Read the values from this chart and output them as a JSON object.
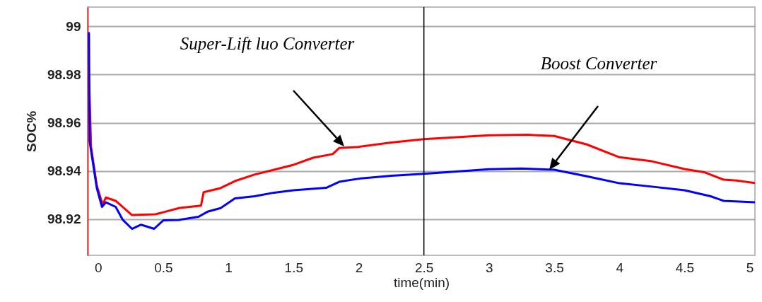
{
  "chart_data": {
    "type": "line",
    "xlabel": "time(min)",
    "ylabel": "SOC%",
    "xlim": [
      -0.08,
      5.04
    ],
    "ylim": [
      98.905,
      99.008
    ],
    "xticks": [
      0,
      0.5,
      1,
      1.5,
      2,
      2.5,
      3,
      3.5,
      4,
      4.5,
      5
    ],
    "yticks": [
      98.92,
      98.94,
      98.96,
      98.98,
      99
    ],
    "grid": "y",
    "marker": "none",
    "line_style": "solid",
    "ref_lines": [
      {
        "axis": "x",
        "value": 2.5,
        "color": "#000000"
      }
    ],
    "annotations": [
      "Super-Lift luo Converter",
      "Boost Converter"
    ],
    "series": [
      {
        "color": "#ff0000",
        "x": [
          -0.07,
          -0.054,
          -0.01,
          0.035,
          0.06,
          0.135,
          0.26,
          0.44,
          0.51,
          0.62,
          0.69,
          0.79,
          0.81,
          0.94,
          1.05,
          1.2,
          1.35,
          1.49,
          1.65,
          1.8,
          1.85,
          2.0,
          2.25,
          2.5,
          2.75,
          3.0,
          3.3,
          3.5,
          3.75,
          4.0,
          4.25,
          4.5,
          4.65,
          4.8,
          4.9,
          5.04
        ],
        "values": [
          98.9796,
          98.95,
          98.934,
          98.926,
          98.929,
          98.9276,
          98.9217,
          98.922,
          98.923,
          98.9246,
          98.925,
          98.9256,
          98.9312,
          98.9329,
          98.9358,
          98.9385,
          98.9405,
          98.9424,
          98.9455,
          98.947,
          98.9495,
          98.95,
          98.9518,
          98.9532,
          98.954,
          98.9548,
          98.955,
          98.9545,
          98.951,
          98.9457,
          98.944,
          98.9408,
          98.9395,
          98.9364,
          98.936,
          98.935
        ]
      },
      {
        "color": "#0000ff",
        "x": [
          -0.07,
          -0.065,
          -0.01,
          0.03,
          0.06,
          0.135,
          0.19,
          0.26,
          0.33,
          0.43,
          0.5,
          0.62,
          0.77,
          0.84,
          0.94,
          1.05,
          1.2,
          1.35,
          1.5,
          1.75,
          1.85,
          2.0,
          2.25,
          2.5,
          2.75,
          3.0,
          3.25,
          3.5,
          3.75,
          4.0,
          4.25,
          4.5,
          4.7,
          4.8,
          5.04
        ],
        "values": [
          98.9972,
          98.9524,
          98.933,
          98.9251,
          98.927,
          98.9251,
          98.9197,
          98.916,
          98.9177,
          98.916,
          98.9195,
          98.9197,
          98.921,
          98.9231,
          98.9246,
          98.9286,
          98.9295,
          98.931,
          98.932,
          98.933,
          98.9355,
          98.9368,
          98.938,
          98.9388,
          98.9398,
          98.9407,
          98.941,
          98.9405,
          98.9378,
          98.9349,
          98.9335,
          98.932,
          98.9295,
          98.9276,
          98.927
        ]
      }
    ]
  }
}
